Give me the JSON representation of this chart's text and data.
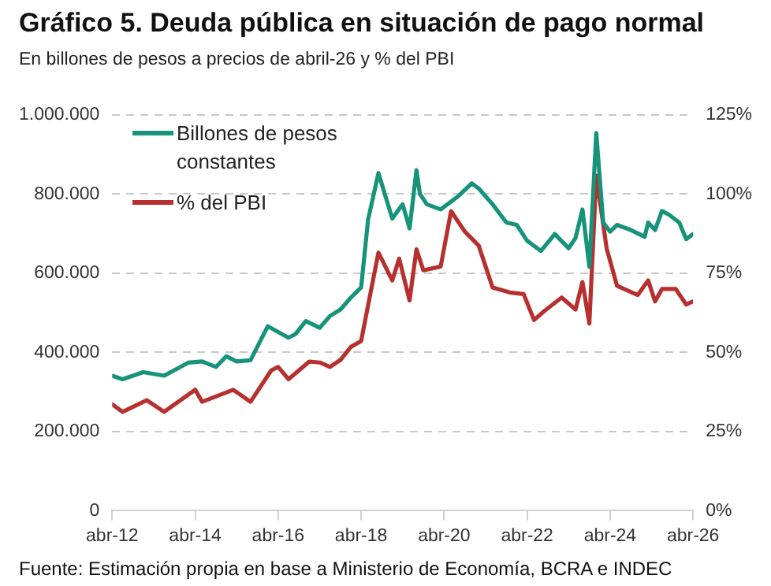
{
  "chart_data": {
    "type": "line",
    "title": "Gráfico 5. Deuda pública en situación de pago normal",
    "subtitle": "En billones de pesos a precios de abril-26 y % del PBI",
    "annotations": [
      "Fuente: Estimación propia en base a Ministerio de Economía, BCRA e INDEC"
    ],
    "xlim": [
      "2012-04",
      "2026-04"
    ],
    "xticks": [
      {
        "value": "2012-04",
        "label": "abr-12"
      },
      {
        "value": "2014-04",
        "label": "abr-14"
      },
      {
        "value": "2016-04",
        "label": "abr-16"
      },
      {
        "value": "2018-04",
        "label": "abr-18"
      },
      {
        "value": "2020-04",
        "label": "abr-20"
      },
      {
        "value": "2022-04",
        "label": "abr-22"
      },
      {
        "value": "2024-04",
        "label": "abr-24"
      },
      {
        "value": "2026-04",
        "label": "abr-26"
      }
    ],
    "ylim": [
      0,
      1000000
    ],
    "yticks": [
      {
        "value": 0,
        "label": "0"
      },
      {
        "value": 200000,
        "label": "200.000"
      },
      {
        "value": 400000,
        "label": "400.000"
      },
      {
        "value": 600000,
        "label": "600.000"
      },
      {
        "value": 800000,
        "label": "800.000"
      },
      {
        "value": 1000000,
        "label": "1.000.000"
      }
    ],
    "y2lim": [
      0,
      125
    ],
    "y2ticks": [
      {
        "value": 0,
        "label": "0%"
      },
      {
        "value": 25,
        "label": "25%"
      },
      {
        "value": 50,
        "label": "50%"
      },
      {
        "value": 75,
        "label": "75%"
      },
      {
        "value": 100,
        "label": "100%"
      },
      {
        "value": 125,
        "label": "125%"
      }
    ],
    "grid": "y",
    "legend": "top left",
    "marker": "none",
    "line_style": "solid",
    "series": [
      {
        "name": "Billones de pesos constantes",
        "color": "#16937a",
        "x": [
          "2012-04",
          "2012-07",
          "2013-01",
          "2013-07",
          "2014-02",
          "2014-06",
          "2014-10",
          "2015-01",
          "2015-04",
          "2015-08",
          "2016-01",
          "2016-07",
          "2016-09",
          "2016-12",
          "2017-04",
          "2017-07",
          "2017-10",
          "2018-01",
          "2018-04",
          "2018-06",
          "2018-09",
          "2019-01",
          "2019-04",
          "2019-06",
          "2019-08",
          "2019-09",
          "2019-11",
          "2020-03",
          "2020-08",
          "2020-12",
          "2021-02",
          "2021-06",
          "2021-10",
          "2022-01",
          "2022-04",
          "2022-08",
          "2022-12",
          "2023-04",
          "2023-06",
          "2023-08",
          "2023-10",
          "2023-12",
          "2024-02",
          "2024-04",
          "2024-06",
          "2024-10",
          "2025-02",
          "2025-03",
          "2025-05",
          "2025-07",
          "2025-09",
          "2025-12",
          "2026-02",
          "2026-04"
        ],
        "values": [
          341000,
          332000,
          350000,
          341000,
          374000,
          377000,
          363000,
          390000,
          377000,
          380000,
          466000,
          437000,
          446000,
          479000,
          462000,
          492000,
          508000,
          538000,
          564000,
          735000,
          853000,
          738000,
          774000,
          713000,
          860000,
          800000,
          774000,
          761000,
          794000,
          827000,
          814000,
          774000,
          728000,
          722000,
          682000,
          656000,
          699000,
          663000,
          689000,
          761000,
          616000,
          954000,
          728000,
          705000,
          722000,
          709000,
          692000,
          728000,
          709000,
          757000,
          748000,
          728000,
          686000,
          699000
        ]
      },
      {
        "name": "% del PBI",
        "color": "#b5302e",
        "axis": "y2",
        "x": [
          "2012-04",
          "2012-07",
          "2013-02",
          "2013-07",
          "2014-04",
          "2014-06",
          "2015-03",
          "2015-08",
          "2016-02",
          "2016-04",
          "2016-07",
          "2017-01",
          "2017-04",
          "2017-07",
          "2017-10",
          "2018-01",
          "2018-04",
          "2018-06",
          "2018-09",
          "2019-01",
          "2019-03",
          "2019-06",
          "2019-08",
          "2019-10",
          "2020-03",
          "2020-06",
          "2020-10",
          "2021-02",
          "2021-06",
          "2021-11",
          "2022-03",
          "2022-06",
          "2022-09",
          "2023-02",
          "2023-06",
          "2023-08",
          "2023-10",
          "2023-12",
          "2024-03",
          "2024-06",
          "2024-12",
          "2025-03",
          "2025-05",
          "2025-07",
          "2025-11",
          "2026-02",
          "2026-04"
        ],
        "values": [
          33.6,
          31.2,
          34.9,
          31.2,
          38.2,
          34.4,
          38.2,
          34.4,
          44.3,
          45.4,
          41.5,
          47.1,
          46.8,
          45.4,
          47.6,
          51.7,
          53.6,
          64.8,
          81.5,
          72.7,
          79.6,
          66.4,
          82.5,
          75.9,
          77.1,
          94.6,
          88.1,
          83.7,
          70.5,
          68.9,
          68.4,
          60.2,
          63.1,
          67.3,
          63.5,
          72.2,
          59.1,
          105.8,
          82.8,
          71.0,
          68.1,
          72.7,
          66.1,
          70.0,
          70.0,
          65.1,
          66.1
        ]
      }
    ]
  }
}
